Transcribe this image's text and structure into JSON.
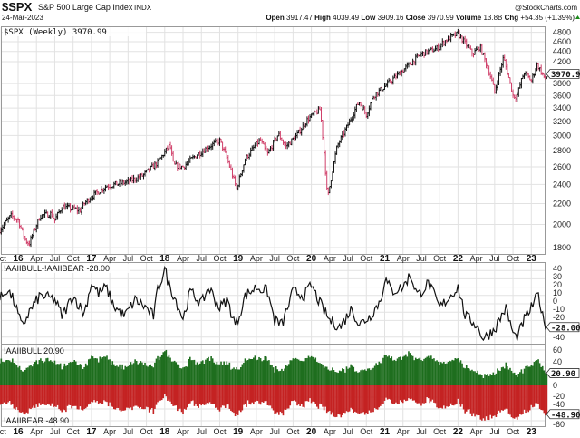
{
  "header": {
    "symbol": "$SPX",
    "name": "S&P 500 Large Cap Index",
    "exchange": "INDX",
    "brand": "@StockCharts.com",
    "date": "24-Mar-2023",
    "open_label": "Open",
    "open": "3917.47",
    "high_label": "High",
    "high": "4039.49",
    "low_label": "Low",
    "low": "3909.16",
    "close_label": "Close",
    "close": "3970.99",
    "volume_label": "Volume",
    "volume": "13.8B",
    "chg_label": "Chg",
    "chg": "+54.35 (+1.39%)",
    "up_color": "#1a8a1a"
  },
  "chart_data": [
    {
      "type": "ohlc",
      "title": "$SPX (Weekly) 3970.99",
      "scale": "log",
      "ylim": [
        1750,
        4900
      ],
      "yticks": [
        1800,
        2000,
        2200,
        2400,
        2600,
        2800,
        3000,
        3200,
        3400,
        3600,
        3800,
        4200,
        4400,
        4600,
        4800
      ],
      "last_label": "3970.99",
      "approx_path": [
        [
          2015.75,
          1950
        ],
        [
          2015.9,
          2080
        ],
        [
          2016.0,
          2040
        ],
        [
          2016.1,
          1860
        ],
        [
          2016.15,
          1830
        ],
        [
          2016.3,
          2080
        ],
        [
          2016.45,
          2100
        ],
        [
          2016.5,
          2040
        ],
        [
          2016.6,
          2170
        ],
        [
          2016.85,
          2130
        ],
        [
          2016.9,
          2200
        ],
        [
          2017.0,
          2270
        ],
        [
          2017.2,
          2380
        ],
        [
          2017.5,
          2430
        ],
        [
          2017.7,
          2500
        ],
        [
          2017.9,
          2650
        ],
        [
          2018.07,
          2870
        ],
        [
          2018.12,
          2620
        ],
        [
          2018.25,
          2600
        ],
        [
          2018.4,
          2720
        ],
        [
          2018.6,
          2850
        ],
        [
          2018.75,
          2930
        ],
        [
          2018.85,
          2700
        ],
        [
          2018.98,
          2350
        ],
        [
          2019.1,
          2700
        ],
        [
          2019.3,
          2940
        ],
        [
          2019.4,
          2750
        ],
        [
          2019.55,
          3020
        ],
        [
          2019.65,
          2850
        ],
        [
          2019.8,
          3000
        ],
        [
          2019.95,
          3230
        ],
        [
          2020.12,
          3380
        ],
        [
          2020.22,
          2240
        ],
        [
          2020.35,
          2850
        ],
        [
          2020.5,
          3150
        ],
        [
          2020.65,
          3500
        ],
        [
          2020.75,
          3300
        ],
        [
          2020.85,
          3600
        ],
        [
          2021.0,
          3750
        ],
        [
          2021.3,
          4100
        ],
        [
          2021.5,
          4350
        ],
        [
          2021.7,
          4450
        ],
        [
          2021.85,
          4650
        ],
        [
          2022.0,
          4770
        ],
        [
          2022.2,
          4350
        ],
        [
          2022.3,
          4500
        ],
        [
          2022.45,
          3900
        ],
        [
          2022.5,
          3650
        ],
        [
          2022.62,
          4280
        ],
        [
          2022.75,
          3600
        ],
        [
          2022.8,
          3580
        ],
        [
          2022.9,
          4000
        ],
        [
          2023.0,
          3850
        ],
        [
          2023.08,
          4150
        ],
        [
          2023.15,
          3970
        ],
        [
          2023.2,
          3850
        ],
        [
          2023.22,
          3971
        ]
      ],
      "up_color": "#111111",
      "down_color": "#d0406a"
    },
    {
      "type": "line",
      "title": "!AAIIBULL-!AAIIBEAR -28.00",
      "ylim": [
        -45,
        45
      ],
      "yticks": [
        40,
        30,
        20,
        10,
        0,
        -10,
        -20,
        -40
      ],
      "last_label": "-28.00",
      "approx_path": [
        [
          2015.75,
          5
        ],
        [
          2015.85,
          18
        ],
        [
          2015.95,
          2
        ],
        [
          2016.05,
          -28
        ],
        [
          2016.15,
          -10
        ],
        [
          2016.3,
          10
        ],
        [
          2016.5,
          5
        ],
        [
          2016.6,
          -15
        ],
        [
          2016.75,
          10
        ],
        [
          2016.9,
          -12
        ],
        [
          2017.0,
          25
        ],
        [
          2017.1,
          12
        ],
        [
          2017.2,
          20
        ],
        [
          2017.3,
          -2
        ],
        [
          2017.45,
          -15
        ],
        [
          2017.6,
          5
        ],
        [
          2017.75,
          -5
        ],
        [
          2017.85,
          -15
        ],
        [
          2017.9,
          15
        ],
        [
          2018.0,
          42
        ],
        [
          2018.05,
          25
        ],
        [
          2018.15,
          5
        ],
        [
          2018.25,
          -18
        ],
        [
          2018.35,
          15
        ],
        [
          2018.5,
          0
        ],
        [
          2018.6,
          20
        ],
        [
          2018.75,
          -5
        ],
        [
          2018.85,
          5
        ],
        [
          2018.97,
          -27
        ],
        [
          2019.1,
          10
        ],
        [
          2019.25,
          20
        ],
        [
          2019.4,
          15
        ],
        [
          2019.5,
          -20
        ],
        [
          2019.6,
          -25
        ],
        [
          2019.75,
          15
        ],
        [
          2019.9,
          10
        ],
        [
          2020.0,
          22
        ],
        [
          2020.12,
          0
        ],
        [
          2020.25,
          -20
        ],
        [
          2020.4,
          -28
        ],
        [
          2020.55,
          -5
        ],
        [
          2020.65,
          -25
        ],
        [
          2020.8,
          -15
        ],
        [
          2020.95,
          5
        ],
        [
          2021.0,
          30
        ],
        [
          2021.1,
          15
        ],
        [
          2021.25,
          20
        ],
        [
          2021.35,
          35
        ],
        [
          2021.45,
          10
        ],
        [
          2021.6,
          25
        ],
        [
          2021.75,
          -5
        ],
        [
          2021.9,
          10
        ],
        [
          2022.0,
          20
        ],
        [
          2022.1,
          -15
        ],
        [
          2022.25,
          -25
        ],
        [
          2022.35,
          -42
        ],
        [
          2022.5,
          -30
        ],
        [
          2022.65,
          -5
        ],
        [
          2022.75,
          -35
        ],
        [
          2022.8,
          -42
        ],
        [
          2022.9,
          -20
        ],
        [
          2023.0,
          -5
        ],
        [
          2023.1,
          12
        ],
        [
          2023.15,
          -15
        ],
        [
          2023.22,
          -28
        ]
      ]
    },
    {
      "type": "bar",
      "series": [
        {
          "name": "!AAIIBULL 20.90",
          "last": 20.9,
          "last_label": "20.90",
          "color": "#1e6e1e"
        },
        {
          "name": "!AAIIBEAR -48.90",
          "last": -48.9,
          "last_label": "-48.90",
          "color": "#c42222"
        }
      ],
      "ylim": [
        -65,
        62
      ],
      "yticks": [
        60,
        40,
        0,
        -20,
        -40,
        -60
      ]
    }
  ],
  "x_axis": {
    "start": 2015.75,
    "end": 2023.23,
    "labels": [
      "Oct",
      "16",
      "Apr",
      "Jul",
      "Oct",
      "17",
      "Apr",
      "Jul",
      "Oct",
      "18",
      "Apr",
      "Jul",
      "Oct",
      "19",
      "Apr",
      "Jul",
      "Oct",
      "20",
      "Apr",
      "Jul",
      "Oct",
      "21",
      "Apr",
      "Jul",
      "Oct",
      "22",
      "Apr",
      "Jul",
      "Oct",
      "23"
    ]
  }
}
